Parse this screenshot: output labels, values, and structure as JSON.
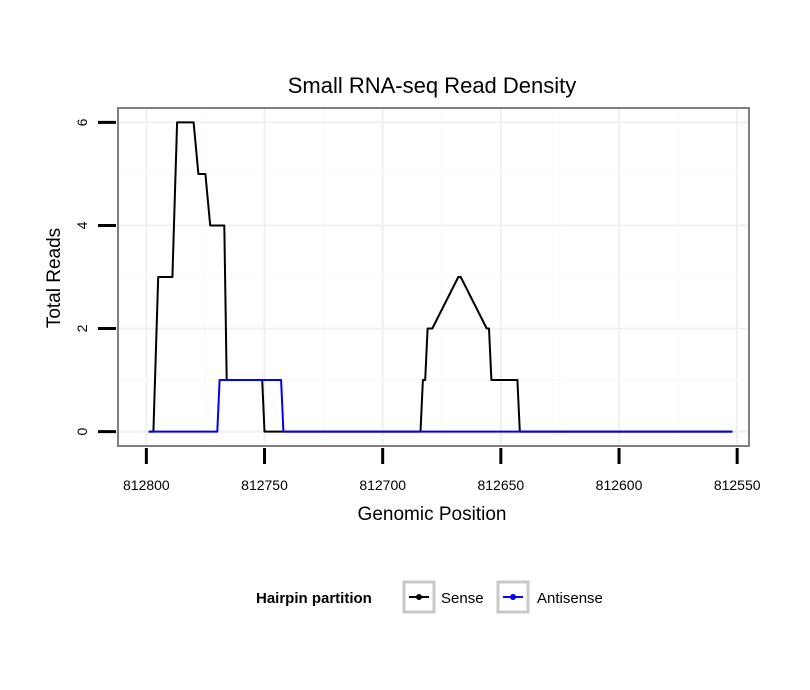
{
  "chart_data": {
    "type": "line",
    "title": "Small RNA-seq Read Density",
    "xlabel": "Genomic Position",
    "ylabel": "Total Reads",
    "xlim": [
      812812,
      812545
    ],
    "ylim": [
      -0.28,
      6.28
    ],
    "x_reversed": true,
    "xticks": [
      812800,
      812750,
      812700,
      812650,
      812600,
      812550
    ],
    "xtick_labels": [
      "812800",
      "812750",
      "812700",
      "812650",
      "812600",
      "812550"
    ],
    "yticks": [
      0,
      2,
      4,
      6
    ],
    "ytick_labels": [
      "0",
      "2",
      "4",
      "6"
    ],
    "grid": true,
    "legend": {
      "title": "Hairpin partition",
      "placement": "bottom"
    },
    "series": [
      {
        "name": "Sense",
        "color": "#000000",
        "x": [
          812799,
          812797,
          812795,
          812789,
          812787,
          812780,
          812778,
          812775,
          812773,
          812767,
          812766,
          812751,
          812750,
          812684,
          812683,
          812682,
          812681,
          812679,
          812668,
          812667,
          812656,
          812655,
          812654,
          812653,
          812643,
          812642,
          812552
        ],
        "y": [
          0,
          0,
          3,
          3,
          6,
          6,
          5,
          5,
          4,
          4,
          1,
          1,
          0,
          0,
          1,
          1,
          2,
          2,
          3,
          3,
          2,
          2,
          1,
          1,
          1,
          0,
          0
        ]
      },
      {
        "name": "Antisense",
        "color": "#0000ff",
        "x": [
          812799,
          812770,
          812769,
          812743,
          812742,
          812552
        ],
        "y": [
          0,
          0,
          1,
          1,
          0,
          0
        ]
      }
    ]
  }
}
